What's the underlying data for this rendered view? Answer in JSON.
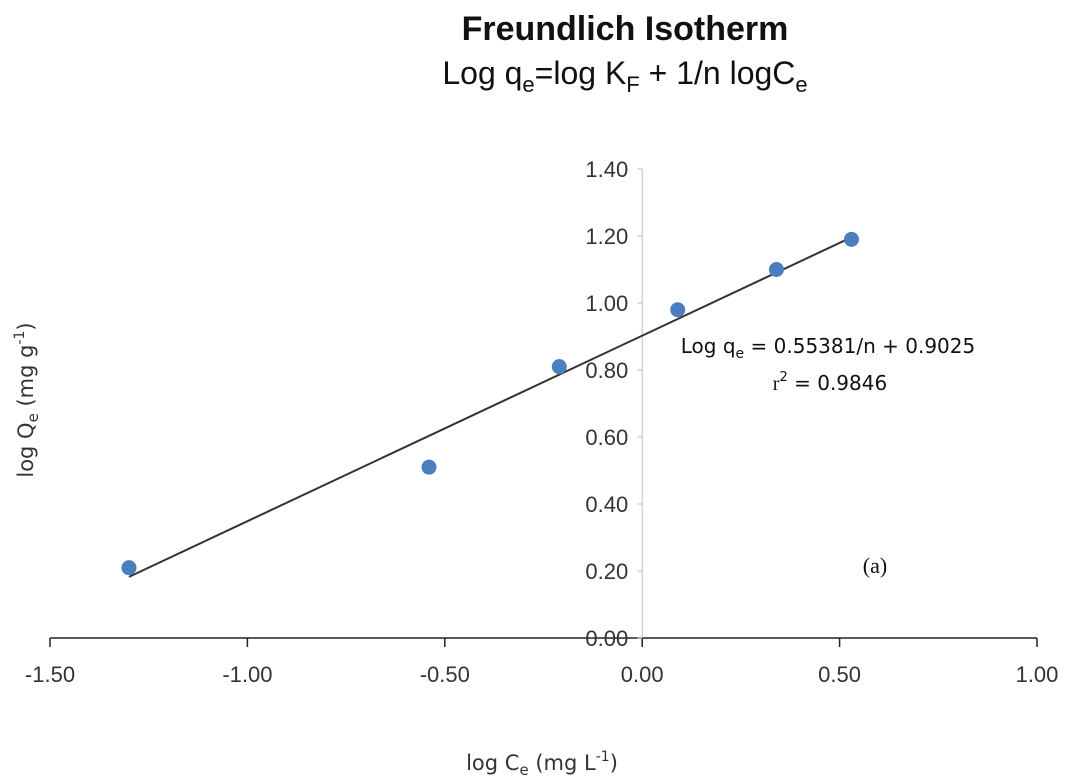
{
  "chart_data": {
    "type": "scatter",
    "title": "Freundlich Isotherm",
    "subtitle": {
      "p1": "Log q",
      "s1": "e",
      "p2": "=log K",
      "s2": "F",
      "p3": " + 1/n logC",
      "s3": "e"
    },
    "xlabel": {
      "base": "log C",
      "sub": "e",
      "unit": " (mg L",
      "sup": "-1",
      "close": ")"
    },
    "ylabel": {
      "base": "log Q",
      "sub": "e",
      "unit": " (mg g",
      "sup": "-1",
      "close": ")"
    },
    "xlim": [
      -1.5,
      1.0
    ],
    "ylim": [
      0.0,
      1.4
    ],
    "x_ticks": [
      -1.5,
      -1.0,
      -0.5,
      0.0,
      0.5,
      1.0
    ],
    "y_ticks": [
      0.0,
      0.2,
      0.4,
      0.6,
      0.8,
      1.0,
      1.2,
      1.4
    ],
    "x_tick_labels": [
      "-1.50",
      "-1.00",
      "-0.50",
      "0.00",
      "0.50",
      "1.00"
    ],
    "y_tick_labels": [
      "0.00",
      "0.20",
      "0.40",
      "0.60",
      "0.80",
      "1.00",
      "1.20",
      "1.40"
    ],
    "points": [
      {
        "x": -1.3,
        "y": 0.21
      },
      {
        "x": -0.54,
        "y": 0.51
      },
      {
        "x": -0.21,
        "y": 0.81
      },
      {
        "x": 0.09,
        "y": 0.98
      },
      {
        "x": 0.34,
        "y": 1.1
      },
      {
        "x": 0.53,
        "y": 1.19
      }
    ],
    "trendline": {
      "x_start": -1.3,
      "x_end": 0.53,
      "slope": 0.55381,
      "intercept": 0.9025
    },
    "equation": {
      "prefix": "Log q",
      "sub": "e",
      "rest": " = 0.55381/n + 0.9025"
    },
    "r2": {
      "base": "r",
      "sup": "2",
      "rest": " = 0.9846"
    },
    "panel_label": "(a)",
    "grid": false,
    "colors": {
      "points": "#4a7ebf",
      "trendline": "#333333",
      "axis": "#222222"
    }
  }
}
